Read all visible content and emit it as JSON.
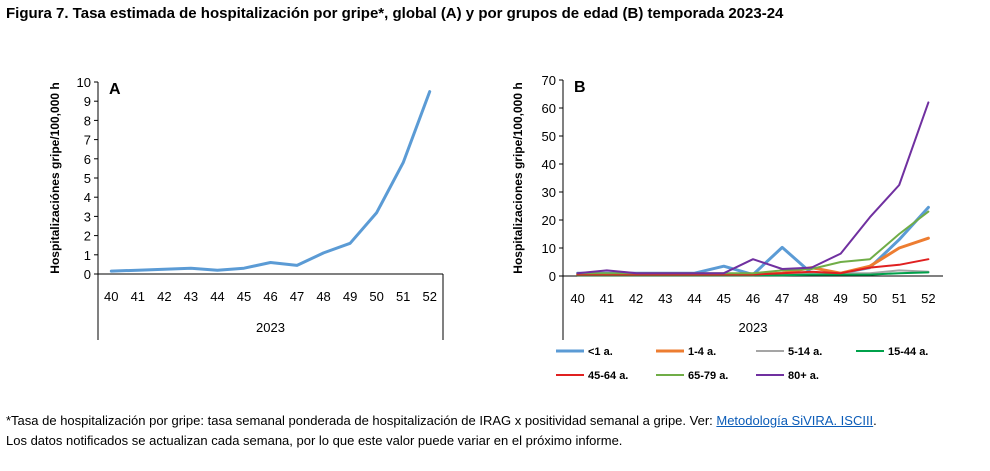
{
  "figure": {
    "title": "Figura 7. Tasa estimada de hospitalización por gripe*, global (A) y por grupos de edad (B) temporada 2023-24"
  },
  "footnote": {
    "line1_text": "*Tasa de hospitalización por gripe: tasa semanal ponderada de hospitalización de IRAG x positividad semanal a gripe. Ver: ",
    "link_text": "Metodología SiVIRA. ISCIII",
    "line1_end": ".",
    "line2": "Los datos notificados se actualizan cada semana, por lo que este valor puede variar en el próximo informe."
  },
  "chart_data": [
    {
      "type": "line",
      "panel_label": "A",
      "ylabel": "Hospitalizaciónes gripe/100,000 h",
      "xlabel": "2023",
      "categories": [
        "40",
        "41",
        "42",
        "43",
        "44",
        "45",
        "46",
        "47",
        "48",
        "49",
        "50",
        "51",
        "52"
      ],
      "ylim": [
        0,
        10
      ],
      "yticks": [
        0,
        1,
        2,
        3,
        4,
        5,
        6,
        7,
        8,
        9,
        10
      ],
      "grid": false,
      "series": [
        {
          "color": "#5b9bd5",
          "values": [
            0.15,
            0.2,
            0.25,
            0.3,
            0.2,
            0.3,
            0.6,
            0.45,
            1.1,
            1.6,
            3.2,
            5.8,
            9.5
          ]
        }
      ]
    },
    {
      "type": "line",
      "panel_label": "B",
      "ylabel": "Hospitalizaciones gripe/100,000 h",
      "xlabel": "2023",
      "categories": [
        "40",
        "41",
        "42",
        "43",
        "44",
        "45",
        "46",
        "47",
        "48",
        "49",
        "50",
        "51",
        "52"
      ],
      "ylim": [
        0,
        70
      ],
      "yticks": [
        0,
        10,
        20,
        30,
        40,
        50,
        60,
        70
      ],
      "grid": false,
      "legend_position": "bottom",
      "series": [
        {
          "name": "<1 a.",
          "color": "#5b9bd5",
          "width": 3,
          "values": [
            1,
            1,
            1,
            1,
            1,
            3.5,
            0.5,
            10.2,
            1,
            1,
            3,
            13,
            24.5
          ]
        },
        {
          "name": "1-4 a.",
          "color": "#ed7d31",
          "width": 3,
          "values": [
            0.5,
            0.5,
            0.5,
            0.5,
            0.5,
            0.5,
            0.5,
            1,
            3,
            1,
            3.5,
            10,
            13.5
          ]
        },
        {
          "name": "5-14 a.",
          "color": "#a5a5a5",
          "width": 2,
          "values": [
            0.5,
            0.5,
            0.5,
            0.5,
            0.5,
            0.5,
            0.5,
            0.5,
            1,
            1,
            1,
            2,
            1.5
          ]
        },
        {
          "name": "15-44 a.",
          "color": "#00a14b",
          "width": 2,
          "values": [
            0.3,
            0.3,
            0.3,
            0.3,
            0.3,
            0.3,
            0.3,
            0.3,
            0.5,
            0.5,
            0.5,
            1,
            1.3
          ]
        },
        {
          "name": "45-64 a.",
          "color": "#e02020",
          "width": 2,
          "values": [
            0.5,
            0.5,
            0.5,
            0.5,
            0.5,
            0.5,
            0.5,
            1,
            1.5,
            1,
            3,
            4,
            6
          ]
        },
        {
          "name": "65-79 a.",
          "color": "#70ad47",
          "width": 2,
          "values": [
            1,
            1,
            1,
            1,
            1,
            1,
            1,
            2,
            2.5,
            5,
            6,
            15,
            23
          ]
        },
        {
          "name": "80+ a.",
          "color": "#7030a0",
          "width": 2,
          "values": [
            1,
            2,
            1,
            1,
            1,
            1,
            6,
            2.5,
            3,
            8,
            21,
            32.5,
            62
          ]
        }
      ]
    }
  ]
}
